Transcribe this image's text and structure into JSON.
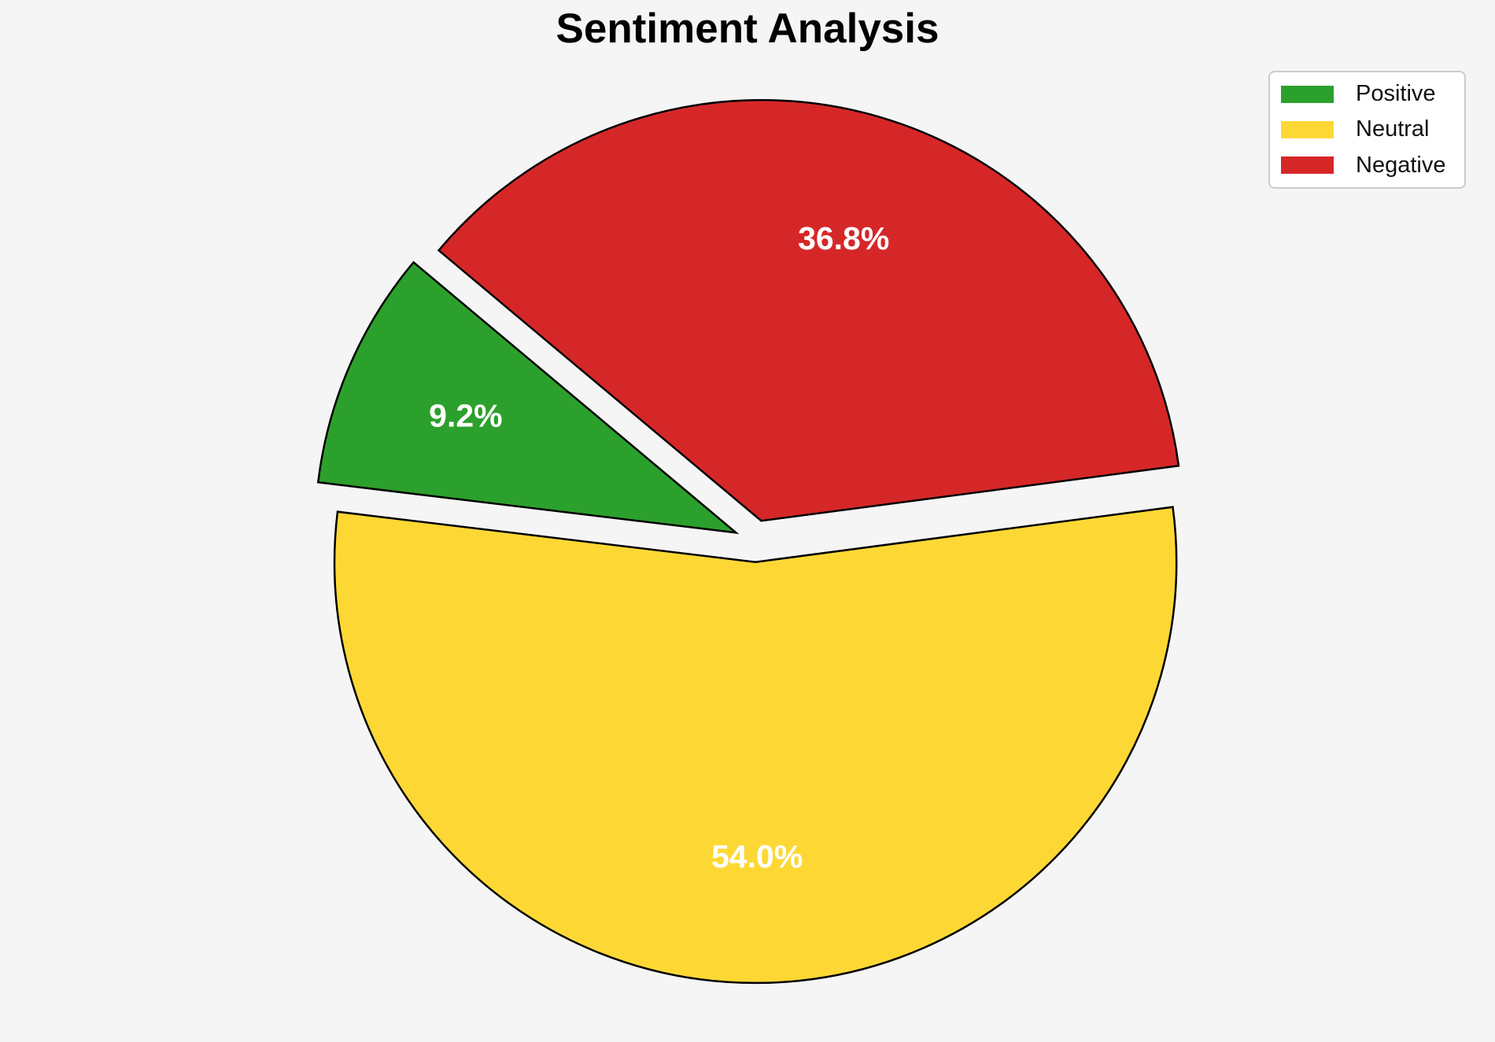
{
  "chart_data": {
    "type": "pie",
    "title": "Sentiment Analysis",
    "categories": [
      "Positive",
      "Neutral",
      "Negative"
    ],
    "values": [
      9.2,
      54.0,
      36.8
    ],
    "slices": [
      {
        "label": "Positive",
        "value": 9.2,
        "pct_label": "9.2%",
        "color": "#2CA02C"
      },
      {
        "label": "Neutral",
        "value": 54.0,
        "pct_label": "54.0%",
        "color": "#FDD835"
      },
      {
        "label": "Negative",
        "value": 36.8,
        "pct_label": "36.8%",
        "color": "#D62728"
      }
    ],
    "start_angle": 140,
    "direction": "counterclockwise",
    "explode": 0.05,
    "pct_distance": 0.7,
    "pct_text_color": "#FFFFFF",
    "edge_color": "#000000",
    "background_color": "#F5F5F5",
    "legend": {
      "position": "upper right",
      "bg": "#FFFFFF",
      "border": "#CCCCCC"
    }
  }
}
